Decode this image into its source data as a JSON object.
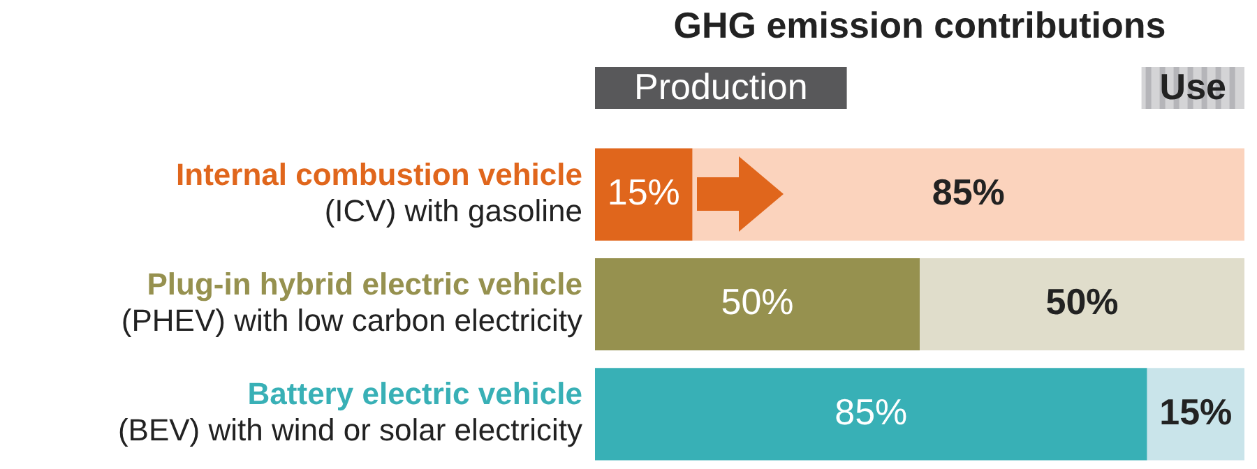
{
  "chart_data": {
    "type": "bar",
    "orientation": "horizontal",
    "stacked": true,
    "title": "GHG emission contributions",
    "categories": [
      "Internal combustion vehicle\n(ICV) with gasoline",
      "Plug-in hybrid electric vehicle\n(PHEV) with low carbon electricity",
      "Battery electric vehicle\n(BEV) with wind or solar electricity"
    ],
    "series": [
      {
        "name": "Production",
        "color": "#58585a",
        "colors": [
          "#e0661c",
          "#96914f",
          "#38b0b6"
        ],
        "values": [
          15,
          50,
          85
        ],
        "value_labels": [
          "15%",
          "50%",
          "85%"
        ]
      },
      {
        "name": "Use",
        "color": "#d4d4d6",
        "colors": [
          "#fbd3bd",
          "#e0ddcb",
          "#c9e4ea"
        ],
        "values": [
          85,
          50,
          15
        ],
        "value_labels": [
          "85%",
          "50%",
          "15%"
        ]
      }
    ],
    "xlim": [
      0,
      100
    ],
    "tick_labels": "y",
    "grid": false,
    "legend": "top right"
  }
}
